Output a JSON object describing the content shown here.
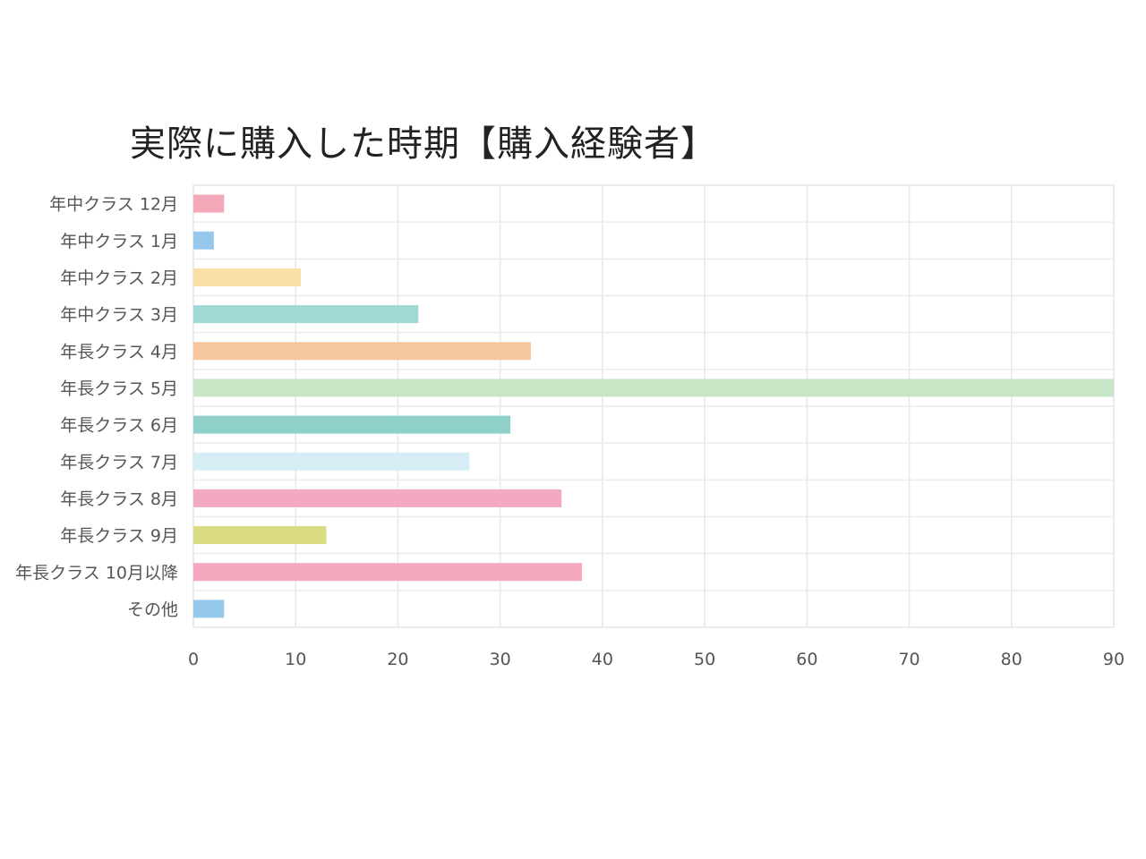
{
  "chart_data": {
    "type": "bar",
    "orientation": "horizontal",
    "title": "実際に購入した時期【購入経験者】",
    "categories": [
      "年中クラス 12月",
      "年中クラス 1月",
      "年中クラス 2月",
      "年中クラス 3月",
      "年長クラス 4月",
      "年長クラス 5月",
      "年長クラス 6月",
      "年長クラス 7月",
      "年長クラス 8月",
      "年長クラス 9月",
      "年長クラス 10月以降",
      "その他"
    ],
    "values": [
      3,
      2,
      10.5,
      22,
      33,
      90,
      31,
      27,
      36,
      13,
      38,
      3
    ],
    "colors": [
      "#f4a9ba",
      "#95c8eb",
      "#f9e0a4",
      "#a0d8d6",
      "#f6c79e",
      "#c6e6c6",
      "#8fd0cb",
      "#d5edf5",
      "#f3a9c4",
      "#d9dc80",
      "#f4a9bf",
      "#95c8eb"
    ],
    "xlim": [
      0,
      90
    ],
    "xticks": [
      0,
      10,
      20,
      30,
      40,
      50,
      60,
      70,
      80,
      90
    ],
    "grid": true,
    "legend": "none"
  }
}
